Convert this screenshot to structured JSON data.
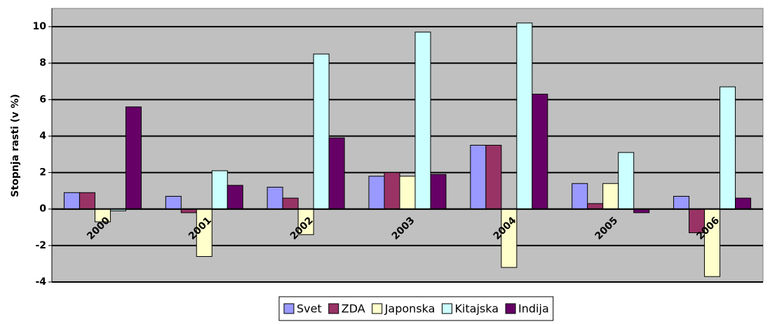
{
  "chart_data": {
    "type": "bar",
    "y_label": "Stopnja rasti (v %)",
    "categories": [
      "2000",
      "2001",
      "2002",
      "2003",
      "2004",
      "2005",
      "2006"
    ],
    "series": [
      {
        "name": "Svet",
        "color": "#9999ff",
        "values": [
          0.9,
          0.7,
          1.2,
          1.8,
          3.5,
          1.4,
          0.7
        ]
      },
      {
        "name": "ZDA",
        "color": "#993366",
        "values": [
          0.9,
          -0.2,
          0.6,
          2.0,
          3.5,
          0.3,
          -1.3
        ]
      },
      {
        "name": "Japonska",
        "color": "#ffffcc",
        "values": [
          -0.7,
          -2.6,
          -1.4,
          1.8,
          -3.2,
          1.4,
          -3.7
        ]
      },
      {
        "name": "Kitajska",
        "color": "#ccffff",
        "values": [
          -0.1,
          2.1,
          8.5,
          9.7,
          10.2,
          3.1,
          6.7
        ]
      },
      {
        "name": "Indija",
        "color": "#660066",
        "values": [
          5.6,
          1.3,
          3.9,
          1.9,
          6.3,
          -0.2,
          0.6
        ]
      }
    ],
    "ylim": [
      -4,
      11
    ],
    "yticks": [
      -4,
      -2,
      0,
      2,
      4,
      6,
      8,
      10
    ],
    "grid": true,
    "legend": "bottom"
  }
}
